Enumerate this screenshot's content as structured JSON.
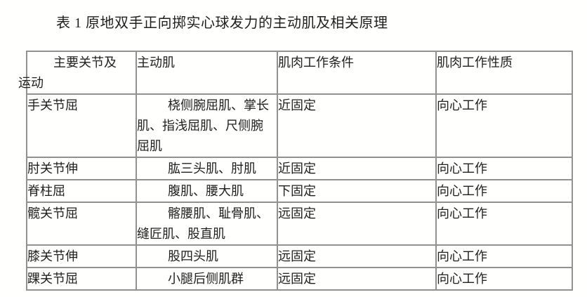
{
  "title": "表 1 原地双手正向掷实心球发力的主动肌及相关原理",
  "colors": {
    "background": "#ffffff",
    "text": "#1f1f1f",
    "table_border": "#919191"
  },
  "table": {
    "columns": [
      {
        "label": "主要关节及\n运动"
      },
      {
        "label": "主动肌"
      },
      {
        "label": "肌肉工作条件"
      },
      {
        "label": "肌肉工作性质"
      }
    ],
    "rows": [
      {
        "joint": "手关节屈",
        "muscles": "桡侧腕屈肌、掌长\n肌、指浅屈肌、尺侧腕\n屈肌",
        "condition": "近固定",
        "nature": "向心工作"
      },
      {
        "joint": "肘关节伸",
        "muscles": "肱三头肌、肘肌",
        "condition": "近固定",
        "nature": "向心工作"
      },
      {
        "joint": "脊柱屈",
        "muscles": "腹肌、腰大肌",
        "condition": "下固定",
        "nature": "向心工作"
      },
      {
        "joint": "髋关节屈",
        "muscles": "髂腰肌、耻骨肌、\n缝匠肌、股直肌",
        "condition": "远固定",
        "nature": "向心工作"
      },
      {
        "joint": "膝关节伸",
        "muscles": "股四头肌",
        "condition": "远固定",
        "nature": "向心工作"
      },
      {
        "joint": "踝关节屈",
        "muscles": "小腿后侧肌群",
        "condition": "远固定",
        "nature": "向心工作"
      }
    ]
  }
}
